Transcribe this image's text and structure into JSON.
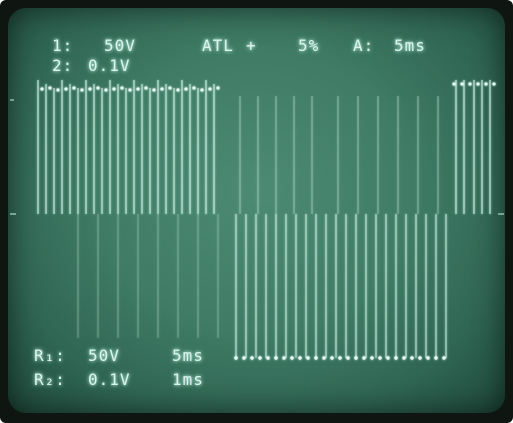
{
  "top_readout": {
    "ch1_label": "1:",
    "ch1_scale": "50V",
    "ch2_label": "2:",
    "ch2_scale": "0.1V",
    "mode": "ATL",
    "slope": "+",
    "trigger_level": "5%",
    "timebase_label": "A:",
    "timebase": "5ms"
  },
  "bottom_readout": {
    "row1_label": "R₁:",
    "row1_volts": "50V",
    "row1_time": "5ms",
    "row2_label": "R₂:",
    "row2_volts": "0.1V",
    "row2_time": "1ms"
  },
  "colors": {
    "phosphor": "#d9f6ee",
    "screen": "#3f7b65"
  }
}
